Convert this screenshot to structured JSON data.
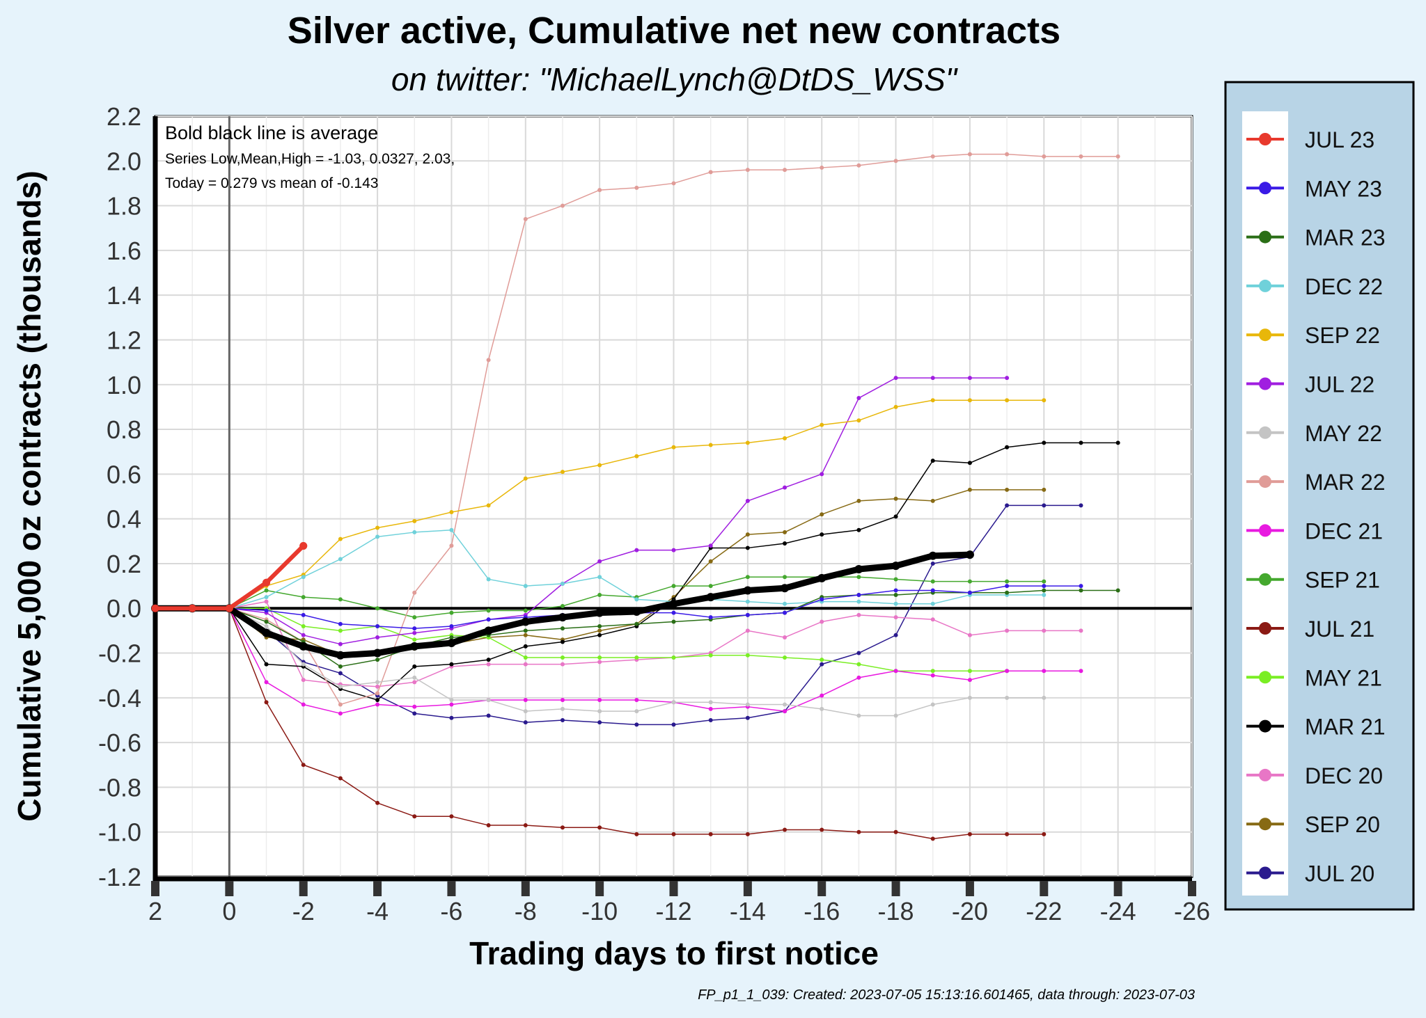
{
  "chart_data": {
    "type": "line",
    "title": "Silver active, Cumulative net new contracts",
    "subtitle": "on twitter:   \"MichaelLynch@DtDS_WSS\"",
    "xlabel": "Trading days to first notice",
    "ylabel": "Cumulative 5,000 oz contracts (thousands)",
    "xlim": [
      2,
      -26
    ],
    "ylim": [
      -1.2,
      2.2
    ],
    "xticks": [
      "2",
      "0",
      "-2",
      "-4",
      "-6",
      "-8",
      "-10",
      "-12",
      "-14",
      "-16",
      "-18",
      "-20",
      "-22",
      "-24",
      "-26"
    ],
    "yticks": [
      "2.2",
      "2.0",
      "1.8",
      "1.6",
      "1.4",
      "1.2",
      "1.0",
      "0.8",
      "0.6",
      "0.4",
      "0.2",
      "0.0",
      "-0.2",
      "-0.4",
      "-0.6",
      "-0.8",
      "-1.0",
      "-1.2"
    ],
    "grid": true,
    "legend_position": "right",
    "notes": {
      "line1": "Bold black line is average",
      "line2": "Series Low,Mean,High = -1.03, 0.0327, 2.03,",
      "line3": "Today = 0.279 vs mean of -0.143"
    },
    "footer": "FP_p1_1_039: Created: 2023-07-05 15:13:16.601465, data through: 2023-07-03",
    "x": [
      2,
      1,
      0,
      -1,
      -2,
      -3,
      -4,
      -5,
      -6,
      -7,
      -8,
      -9,
      -10,
      -11,
      -12,
      -13,
      -14,
      -15,
      -16,
      -17,
      -18,
      -19,
      -20,
      -21,
      -22,
      -23,
      -24
    ],
    "average": {
      "color": "#000000",
      "values": [
        0,
        0,
        0,
        -0.11,
        -0.17,
        -0.21,
        -0.2,
        -0.17,
        -0.155,
        -0.1,
        -0.06,
        -0.04,
        -0.02,
        -0.015,
        0.02,
        0.05,
        0.08,
        0.09,
        0.135,
        0.175,
        0.19,
        0.235,
        0.24,
        null,
        null,
        null,
        null
      ]
    },
    "series": [
      {
        "name": "JUL 23",
        "color": "#e8392d",
        "values": [
          0,
          0,
          0,
          0.115,
          0.279,
          null,
          null,
          null,
          null,
          null,
          null,
          null,
          null,
          null,
          null,
          null,
          null,
          null,
          null,
          null,
          null,
          null,
          null,
          null,
          null,
          null,
          null
        ]
      },
      {
        "name": "MAY 23",
        "color": "#3a1ae6",
        "values": [
          0,
          0,
          0,
          -0.01,
          -0.03,
          -0.07,
          -0.08,
          -0.09,
          -0.08,
          -0.05,
          -0.04,
          -0.03,
          -0.02,
          -0.02,
          -0.02,
          -0.04,
          -0.03,
          -0.02,
          0.04,
          0.06,
          0.08,
          0.08,
          0.07,
          0.1,
          0.1,
          0.1,
          null
        ]
      },
      {
        "name": "MAR 23",
        "color": "#2a6e16",
        "values": [
          0,
          0,
          0,
          -0.06,
          -0.15,
          -0.26,
          -0.23,
          -0.17,
          -0.13,
          -0.12,
          -0.1,
          -0.09,
          -0.08,
          -0.07,
          -0.06,
          -0.05,
          -0.03,
          -0.02,
          0.05,
          0.06,
          0.06,
          0.07,
          0.07,
          0.07,
          0.08,
          0.08,
          0.08
        ]
      },
      {
        "name": "DEC 22",
        "color": "#6fd1da",
        "values": [
          0,
          0,
          0,
          0.05,
          0.14,
          0.22,
          0.32,
          0.34,
          0.35,
          0.13,
          0.1,
          0.11,
          0.14,
          0.04,
          0.03,
          0.04,
          0.03,
          0.02,
          0.03,
          0.03,
          0.02,
          0.02,
          0.06,
          0.06,
          0.06,
          null,
          null
        ]
      },
      {
        "name": "SEP 22",
        "color": "#e8b70a",
        "values": [
          0,
          0,
          0,
          0.1,
          0.15,
          0.31,
          0.36,
          0.39,
          0.43,
          0.46,
          0.58,
          0.61,
          0.64,
          0.68,
          0.72,
          0.73,
          0.74,
          0.76,
          0.82,
          0.84,
          0.9,
          0.93,
          0.93,
          0.93,
          0.93,
          null,
          null
        ]
      },
      {
        "name": "JUL 22",
        "color": "#a01ee0",
        "values": [
          0,
          0,
          0,
          -0.02,
          -0.12,
          -0.16,
          -0.13,
          -0.11,
          -0.09,
          -0.05,
          -0.03,
          0.11,
          0.21,
          0.26,
          0.26,
          0.28,
          0.48,
          0.54,
          0.6,
          0.94,
          1.03,
          1.03,
          1.03,
          1.03,
          null,
          null,
          null
        ]
      },
      {
        "name": "MAY 22",
        "color": "#c4c4c4",
        "values": [
          0,
          0,
          0,
          -0.08,
          -0.25,
          -0.35,
          -0.33,
          -0.31,
          -0.41,
          -0.41,
          -0.46,
          -0.45,
          -0.46,
          -0.46,
          -0.42,
          -0.42,
          -0.43,
          -0.43,
          -0.45,
          -0.48,
          -0.48,
          -0.43,
          -0.4,
          -0.4,
          -0.4,
          null,
          null
        ]
      },
      {
        "name": "MAR 22",
        "color": "#e09c98",
        "values": [
          0,
          0,
          0,
          -0.05,
          -0.15,
          -0.43,
          -0.38,
          0.07,
          0.28,
          1.11,
          1.74,
          1.8,
          1.87,
          1.88,
          1.9,
          1.95,
          1.96,
          1.96,
          1.97,
          1.98,
          2.0,
          2.02,
          2.03,
          2.03,
          2.02,
          2.02,
          2.02
        ]
      },
      {
        "name": "DEC 21",
        "color": "#e81ae0",
        "values": [
          0,
          0,
          0,
          -0.33,
          -0.43,
          -0.47,
          -0.43,
          -0.44,
          -0.43,
          -0.41,
          -0.41,
          -0.41,
          -0.41,
          -0.41,
          -0.42,
          -0.45,
          -0.44,
          -0.46,
          -0.39,
          -0.31,
          -0.28,
          -0.3,
          -0.32,
          -0.28,
          -0.28,
          -0.28,
          null
        ]
      },
      {
        "name": "SEP 21",
        "color": "#44a82e",
        "values": [
          0,
          0,
          0,
          0.08,
          0.05,
          0.04,
          0.0,
          -0.04,
          -0.02,
          -0.01,
          -0.01,
          0.01,
          0.06,
          0.05,
          0.1,
          0.1,
          0.14,
          0.14,
          0.14,
          0.14,
          0.13,
          0.12,
          0.12,
          0.12,
          0.12,
          null,
          null
        ]
      },
      {
        "name": "JUL 21",
        "color": "#8b1a14",
        "values": [
          0,
          0,
          0,
          -0.42,
          -0.7,
          -0.76,
          -0.87,
          -0.93,
          -0.93,
          -0.97,
          -0.97,
          -0.98,
          -0.98,
          -1.01,
          -1.01,
          -1.01,
          -1.01,
          -0.99,
          -0.99,
          -1.0,
          -1.0,
          -1.03,
          -1.01,
          -1.01,
          -1.01,
          null,
          null
        ]
      },
      {
        "name": "MAY 21",
        "color": "#7aee24",
        "values": [
          0,
          0,
          0,
          0.0,
          -0.08,
          -0.1,
          -0.08,
          -0.14,
          -0.12,
          -0.13,
          -0.22,
          -0.22,
          -0.22,
          -0.22,
          -0.22,
          -0.21,
          -0.21,
          -0.22,
          -0.23,
          -0.25,
          -0.28,
          -0.28,
          -0.28,
          -0.28,
          null,
          null,
          null
        ]
      },
      {
        "name": "MAR 21",
        "color": "#000000",
        "values": [
          0,
          0,
          0,
          -0.25,
          -0.26,
          -0.36,
          -0.41,
          -0.26,
          -0.25,
          -0.23,
          -0.17,
          -0.15,
          -0.12,
          -0.08,
          0.04,
          0.27,
          0.27,
          0.29,
          0.33,
          0.35,
          0.41,
          0.66,
          0.65,
          0.72,
          0.74,
          0.74,
          0.74
        ]
      },
      {
        "name": "DEC 20",
        "color": "#e876c6",
        "values": [
          0,
          0,
          0,
          0.03,
          -0.32,
          -0.34,
          -0.35,
          -0.33,
          -0.26,
          -0.25,
          -0.25,
          -0.25,
          -0.24,
          -0.23,
          -0.22,
          -0.2,
          -0.1,
          -0.13,
          -0.06,
          -0.03,
          -0.04,
          -0.05,
          -0.12,
          -0.1,
          -0.1,
          -0.1,
          null
        ]
      },
      {
        "name": "SEP 20",
        "color": "#876a14",
        "values": [
          0,
          0,
          0,
          -0.13,
          -0.14,
          -0.21,
          -0.2,
          -0.18,
          -0.16,
          -0.13,
          -0.12,
          -0.14,
          -0.1,
          -0.07,
          0.05,
          0.21,
          0.33,
          0.34,
          0.42,
          0.48,
          0.49,
          0.48,
          0.53,
          0.53,
          0.53,
          null,
          null
        ]
      },
      {
        "name": "JUL 20",
        "color": "#2a1a8e",
        "values": [
          0,
          0,
          0,
          -0.1,
          -0.24,
          -0.29,
          -0.39,
          -0.47,
          -0.49,
          -0.48,
          -0.51,
          -0.5,
          -0.51,
          -0.52,
          -0.52,
          -0.5,
          -0.49,
          -0.46,
          -0.25,
          -0.2,
          -0.12,
          0.2,
          0.23,
          0.46,
          0.46,
          0.46,
          null
        ]
      }
    ]
  }
}
